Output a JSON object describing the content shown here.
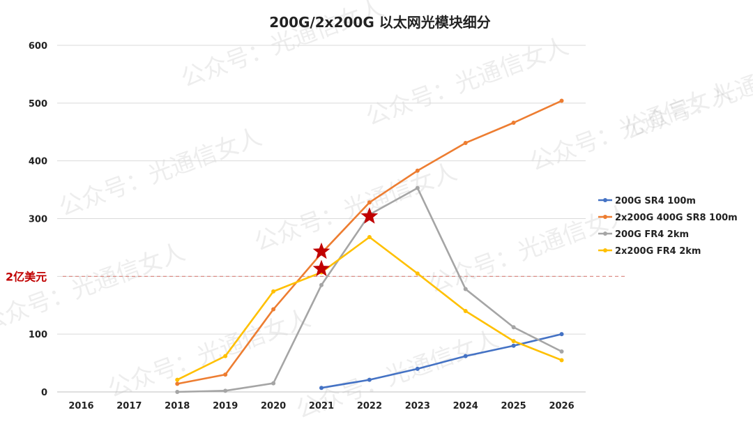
{
  "chart_data": {
    "type": "line",
    "title": "200G/2x200G 以太网光模块细分",
    "xlabel": "",
    "ylabel": "",
    "categories": [
      "2016",
      "2017",
      "2018",
      "2019",
      "2020",
      "2021",
      "2022",
      "2023",
      "2024",
      "2025",
      "2026"
    ],
    "ylim": [
      0,
      600
    ],
    "yticks": [
      0,
      100,
      200,
      300,
      400,
      500,
      600
    ],
    "ytick_labels": [
      "0",
      "100",
      "",
      "300",
      "400",
      "500",
      "600"
    ],
    "grid": true,
    "legend_position": "right",
    "series": [
      {
        "name": "200G SR4 100m",
        "color": "#4472c4",
        "values": [
          null,
          null,
          null,
          null,
          null,
          7,
          21,
          40,
          62,
          80,
          100
        ]
      },
      {
        "name": "2x200G 400G SR8 100m",
        "color": "#ed7d31",
        "values": [
          null,
          null,
          14,
          30,
          143,
          240,
          328,
          383,
          431,
          466,
          504
        ]
      },
      {
        "name": "200G FR4 2km",
        "color": "#a5a5a5",
        "values": [
          null,
          null,
          0,
          2,
          15,
          185,
          307,
          353,
          178,
          112,
          70
        ]
      },
      {
        "name": "2x200G FR4 2km",
        "color": "#ffc000",
        "values": [
          null,
          null,
          21,
          62,
          174,
          207,
          268,
          205,
          140,
          88,
          55
        ]
      }
    ],
    "reference_line": {
      "value": 200,
      "label": "2亿美元",
      "color": "#c00000"
    },
    "star_markers": [
      {
        "category": "2021",
        "value": 243,
        "color": "#c00000"
      },
      {
        "category": "2021",
        "value": 213,
        "color": "#c00000"
      },
      {
        "category": "2022",
        "value": 304,
        "color": "#c00000"
      }
    ]
  },
  "watermark": {
    "text": "公众号：光通信女人"
  }
}
